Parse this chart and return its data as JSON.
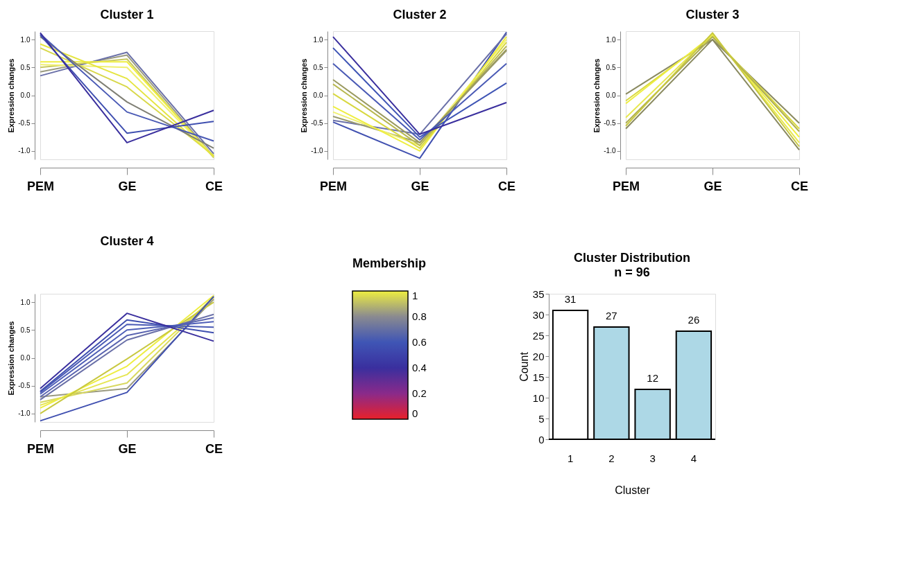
{
  "chart_data": [
    {
      "type": "line",
      "title": "Cluster 1",
      "ylabel": "Expression changes",
      "categories": [
        "PEM",
        "GE",
        "CE"
      ],
      "ylim": [
        -1.15,
        1.15
      ],
      "yticks": [
        {
          "value": -1,
          "label": "-1.0"
        },
        {
          "value": -0.5,
          "label": "-0.5"
        },
        {
          "value": 0,
          "label": "0.0"
        },
        {
          "value": 0.5,
          "label": "0.5"
        },
        {
          "value": 1,
          "label": "1.0"
        }
      ],
      "series": [
        {
          "color": "#9a9a80",
          "values": [
            0.42,
            0.72,
            -1.1
          ]
        },
        {
          "color": "#6a70a8",
          "values": [
            0.35,
            0.77,
            -1.05
          ]
        },
        {
          "color": "#c8c860",
          "values": [
            0.5,
            0.65,
            -1.12
          ]
        },
        {
          "color": "#eeee40",
          "values": [
            0.6,
            0.6,
            -1.1
          ]
        },
        {
          "color": "#f0f070",
          "values": [
            0.55,
            0.5,
            -1.1
          ]
        },
        {
          "color": "#d8d84a",
          "values": [
            0.85,
            0.15,
            -1.08
          ]
        },
        {
          "color": "#e5e540",
          "values": [
            0.92,
            0.3,
            -1.1
          ]
        },
        {
          "color": "#7f7f74",
          "values": [
            1.05,
            -0.12,
            -0.95
          ]
        },
        {
          "color": "#4a5ab5",
          "values": [
            1.1,
            -0.3,
            -0.82
          ]
        },
        {
          "color": "#3f4fb0",
          "values": [
            1.08,
            -0.68,
            -0.47
          ]
        },
        {
          "color": "#3a2f9e",
          "values": [
            1.12,
            -0.85,
            -0.27
          ]
        }
      ]
    },
    {
      "type": "line",
      "title": "Cluster 2",
      "ylabel": "Expression changes",
      "categories": [
        "PEM",
        "GE",
        "CE"
      ],
      "ylim": [
        -1.15,
        1.15
      ],
      "yticks": [
        {
          "value": -1,
          "label": "-1.0"
        },
        {
          "value": -0.5,
          "label": "-0.5"
        },
        {
          "value": 0,
          "label": "0.0"
        },
        {
          "value": 0.5,
          "label": "0.5"
        },
        {
          "value": 1,
          "label": "1.0"
        }
      ],
      "series": [
        {
          "color": "#4050b0",
          "values": [
            -0.48,
            -1.13,
            1.13
          ]
        },
        {
          "color": "#6a70a8",
          "values": [
            -0.45,
            -0.7,
            1.1
          ]
        },
        {
          "color": "#9a9a70",
          "values": [
            -0.38,
            -0.85,
            0.8
          ]
        },
        {
          "color": "#f0f070",
          "values": [
            -0.3,
            -0.9,
            1.0
          ]
        },
        {
          "color": "#eeee40",
          "values": [
            -0.2,
            -1.0,
            1.05
          ]
        },
        {
          "color": "#d8d840",
          "values": [
            0.03,
            -0.95,
            0.95
          ]
        },
        {
          "color": "#b8b850",
          "values": [
            0.2,
            -0.9,
            0.88
          ]
        },
        {
          "color": "#9a9a60",
          "values": [
            0.28,
            -0.85,
            0.82
          ]
        },
        {
          "color": "#4a5ab5",
          "values": [
            0.57,
            -0.8,
            0.57
          ]
        },
        {
          "color": "#3f55b5",
          "values": [
            0.85,
            -0.75,
            0.22
          ]
        },
        {
          "color": "#3a2f9e",
          "values": [
            1.05,
            -0.7,
            -0.13
          ]
        }
      ]
    },
    {
      "type": "line",
      "title": "Cluster 3",
      "ylabel": "Expression changes",
      "categories": [
        "PEM",
        "GE",
        "CE"
      ],
      "ylim": [
        -1.15,
        1.15
      ],
      "yticks": [
        {
          "value": -1,
          "label": "-1.0"
        },
        {
          "value": -0.5,
          "label": "-0.5"
        },
        {
          "value": 0,
          "label": "0.0"
        },
        {
          "value": 0.5,
          "label": "0.5"
        },
        {
          "value": 1,
          "label": "1.0"
        }
      ],
      "series": [
        {
          "color": "#8a8a60",
          "values": [
            0.02,
            1.0,
            -0.5
          ]
        },
        {
          "color": "#d8d840",
          "values": [
            -0.1,
            1.05,
            -0.6
          ]
        },
        {
          "color": "#eeee40",
          "values": [
            -0.15,
            1.08,
            -0.75
          ]
        },
        {
          "color": "#e8e850",
          "values": [
            -0.4,
            1.1,
            -0.85
          ]
        },
        {
          "color": "#b0b050",
          "values": [
            -0.5,
            1.05,
            -0.65
          ]
        },
        {
          "color": "#c8c840",
          "values": [
            -0.55,
            1.12,
            -0.92
          ]
        },
        {
          "color": "#8a8a60",
          "values": [
            -0.6,
            1.0,
            -0.98
          ]
        }
      ]
    },
    {
      "type": "line",
      "title": "Cluster 4",
      "ylabel": "Expression changes",
      "clabel": "Membership",
      "clim": [
        0,
        1
      ],
      "cticks": [
        0,
        0.2,
        0.4,
        0.6,
        0.8,
        1
      ],
      "colors": [
        "#e8202a",
        "#8a2a8a",
        "#3a2f9e",
        "#3f55b5",
        "#8a8a90",
        "#eeee40"
      ],
      "categories": [
        "PEM",
        "GE",
        "CE"
      ],
      "ylim": [
        -1.15,
        1.15
      ],
      "yticks": [
        {
          "value": -1,
          "label": "-1.0"
        },
        {
          "value": -0.5,
          "label": "-0.5"
        },
        {
          "value": 0,
          "label": "0.0"
        },
        {
          "value": 0.5,
          "label": "0.5"
        },
        {
          "value": 1,
          "label": "1.0"
        }
      ],
      "series": [
        {
          "color": "#9a9a80",
          "values": [
            -0.7,
            -0.55,
            1.05
          ]
        },
        {
          "color": "#d8d860",
          "values": [
            -0.8,
            -0.45,
            1.1
          ]
        },
        {
          "color": "#e5e550",
          "values": [
            -0.85,
            -0.3,
            1.08
          ]
        },
        {
          "color": "#eeee40",
          "values": [
            -0.9,
            -0.15,
            1.12
          ]
        },
        {
          "color": "#c8c840",
          "values": [
            -1.0,
            -0.02,
            1.0
          ]
        },
        {
          "color": "#3f4fb0",
          "values": [
            -1.13,
            -0.62,
            1.1
          ]
        },
        {
          "color": "#6a70a8",
          "values": [
            -0.75,
            0.32,
            0.78
          ]
        },
        {
          "color": "#5a64b0",
          "values": [
            -0.7,
            0.4,
            0.72
          ]
        },
        {
          "color": "#4f5fb8",
          "values": [
            -0.65,
            0.5,
            0.65
          ]
        },
        {
          "color": "#4a5ab5",
          "values": [
            -0.62,
            0.6,
            0.55
          ]
        },
        {
          "color": "#3f4fb0",
          "values": [
            -0.6,
            0.68,
            0.45
          ]
        },
        {
          "color": "#3a2f9e",
          "values": [
            -0.55,
            0.8,
            0.3
          ]
        }
      ]
    },
    {
      "type": "bar",
      "title": "Cluster Distribution",
      "subtitle": "n = 96",
      "xlabel": "Cluster",
      "ylabel": "Count",
      "categories": [
        "1",
        "2",
        "3",
        "4"
      ],
      "values": [
        31,
        27,
        12,
        26
      ],
      "colors": [
        "#ffffff",
        "#add8e6",
        "#add8e6",
        "#add8e6"
      ],
      "ylim": [
        0,
        35
      ],
      "yticks": [
        0,
        5,
        10,
        15,
        20,
        25,
        30,
        35
      ],
      "data_labels": true
    }
  ]
}
